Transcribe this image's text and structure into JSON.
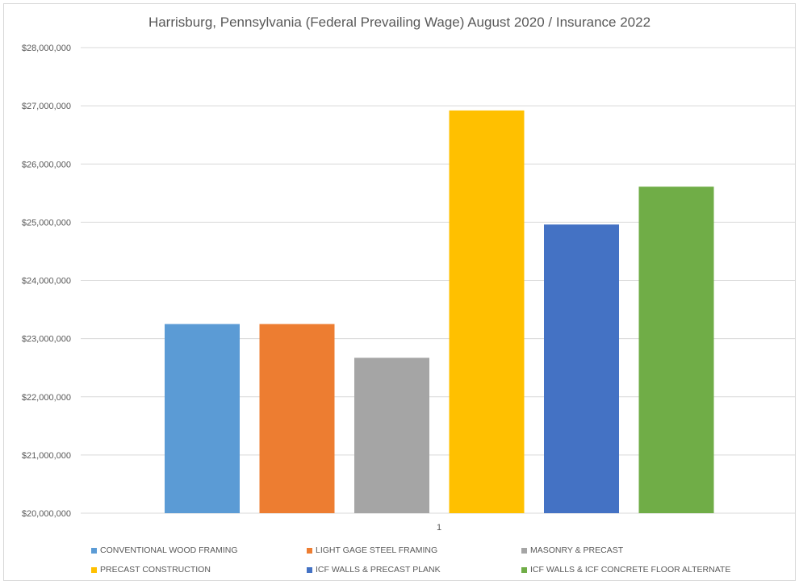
{
  "chart_data": {
    "type": "bar",
    "title": "Harrisburg, Pennsylvania (Federal Prevailing Wage) August 2020 / Insurance 2022",
    "xlabel": "",
    "ylabel": "",
    "categories": [
      "1"
    ],
    "ylim": [
      20000000,
      28000000
    ],
    "yticks": [
      "$20,000,000",
      "$21,000,000",
      "$22,000,000",
      "$23,000,000",
      "$24,000,000",
      "$25,000,000",
      "$26,000,000",
      "$27,000,000",
      "$28,000,000"
    ],
    "ytick_values": [
      20000000,
      21000000,
      22000000,
      23000000,
      24000000,
      25000000,
      26000000,
      27000000,
      28000000
    ],
    "grid": true,
    "legend_position": "bottom",
    "series": [
      {
        "name": "CONVENTIONAL WOOD FRAMING",
        "values": [
          23250000
        ],
        "color": "#5b9bd5"
      },
      {
        "name": "LIGHT GAGE STEEL FRAMING",
        "values": [
          23250000
        ],
        "color": "#ed7d31"
      },
      {
        "name": "MASONRY & PRECAST",
        "values": [
          22670000
        ],
        "color": "#a5a5a5"
      },
      {
        "name": "PRECAST CONSTRUCTION",
        "values": [
          26920000
        ],
        "color": "#ffc000"
      },
      {
        "name": "ICF WALLS & PRECAST PLANK",
        "values": [
          24960000
        ],
        "color": "#4472c4"
      },
      {
        "name": "ICF WALLS & ICF CONCRETE FLOOR ALTERNATE",
        "values": [
          25610000
        ],
        "color": "#70ad47"
      }
    ]
  }
}
